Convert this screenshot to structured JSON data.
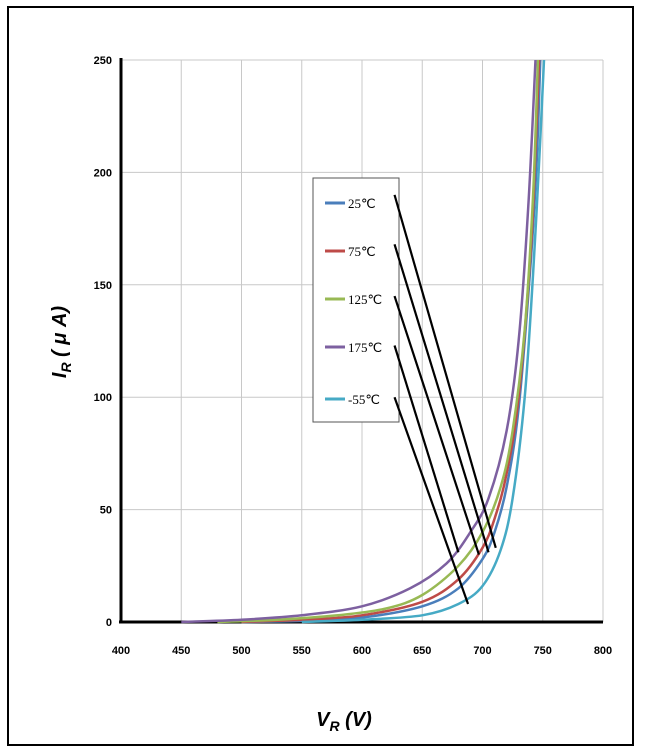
{
  "chart_data": {
    "type": "line",
    "xlabel_main": "V",
    "xlabel_sub": "R",
    "xlabel_unit": " (V)",
    "ylabel_main": "I",
    "ylabel_sub": "R",
    "ylabel_unit": " ( μ A)",
    "xlim": [
      400,
      800
    ],
    "ylim": [
      0,
      250
    ],
    "x_ticks": [
      "400",
      "450",
      "500",
      "550",
      "600",
      "650",
      "700",
      "750",
      "800"
    ],
    "y_ticks": [
      "0",
      "50",
      "100",
      "150",
      "200",
      "250"
    ],
    "grid": true,
    "legend_position": "center",
    "series": [
      {
        "name": "25℃",
        "color": "#4a7ebb",
        "x": [
          500,
          550,
          600,
          650,
          680,
          700,
          710,
          720,
          730,
          740,
          745,
          748
        ],
        "y": [
          0,
          0.5,
          2,
          7,
          15,
          28,
          40,
          60,
          95,
          160,
          205,
          250
        ]
      },
      {
        "name": "75℃",
        "color": "#be4b48",
        "x": [
          500,
          550,
          600,
          650,
          680,
          700,
          710,
          720,
          730,
          740,
          744,
          747
        ],
        "y": [
          0,
          1,
          3,
          9,
          19,
          33,
          46,
          66,
          100,
          165,
          210,
          250
        ]
      },
      {
        "name": "125℃",
        "color": "#98b954",
        "x": [
          480,
          530,
          580,
          620,
          650,
          680,
          700,
          715,
          725,
          735,
          742,
          746
        ],
        "y": [
          0,
          1,
          3,
          6,
          12,
          25,
          40,
          60,
          85,
          130,
          190,
          250
        ]
      },
      {
        "name": "175℃",
        "color": "#7d60a0",
        "x": [
          450,
          500,
          550,
          600,
          640,
          670,
          690,
          705,
          720,
          730,
          738,
          744
        ],
        "y": [
          0,
          1,
          3,
          7,
          15,
          26,
          40,
          55,
          85,
          125,
          185,
          250
        ]
      },
      {
        "name": "-55℃",
        "color": "#46aac5",
        "x": [
          550,
          600,
          650,
          680,
          700,
          715,
          725,
          735,
          742,
          748,
          751
        ],
        "y": [
          0,
          1,
          3,
          8,
          16,
          32,
          55,
          100,
          155,
          215,
          250
        ]
      }
    ],
    "annotation_arrows": [
      {
        "from": [
          627,
          190
        ],
        "to": [
          711,
          33
        ]
      },
      {
        "from": [
          627,
          168
        ],
        "to": [
          705,
          31
        ]
      },
      {
        "from": [
          627,
          145
        ],
        "to": [
          697,
          30
        ]
      },
      {
        "from": [
          627,
          123
        ],
        "to": [
          680,
          31
        ]
      },
      {
        "from": [
          627,
          100
        ],
        "to": [
          688,
          8
        ]
      }
    ]
  }
}
